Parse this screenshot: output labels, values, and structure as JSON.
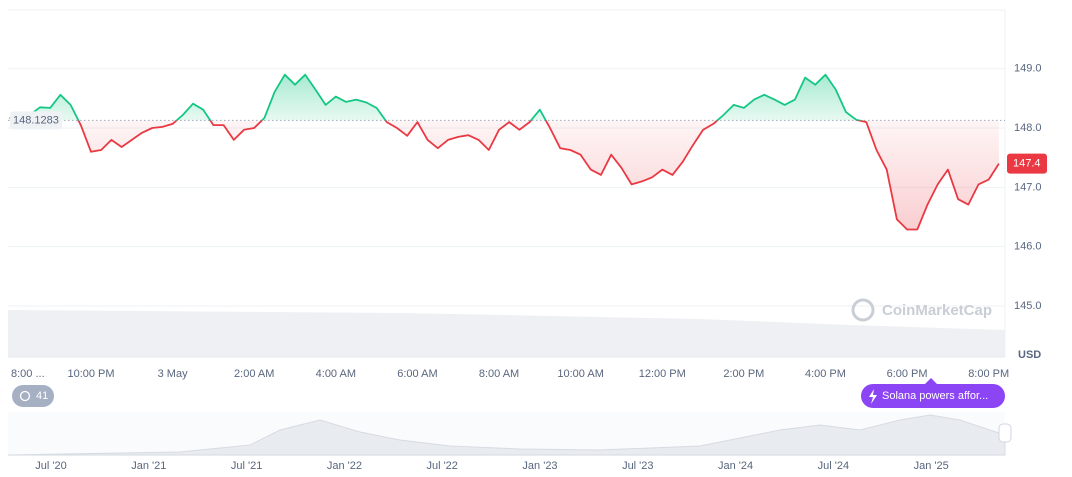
{
  "chart_data": {
    "type": "line",
    "baseline": 148.1283,
    "current_price": 147.4,
    "y_unit": "USD",
    "watermark": "CoinMarketCap",
    "badge": "41",
    "event_label": "Solana powers affor...",
    "up_color": "#16c784",
    "down_color": "#ea3943",
    "grid": true,
    "xlim": [
      0,
      24.4
    ],
    "ylim": [
      144.14,
      149.99
    ],
    "xticks": [
      {
        "value": 0,
        "label": "8:00 ..."
      },
      {
        "value": 2,
        "label": "10:00 PM"
      },
      {
        "value": 4,
        "label": "3 May"
      },
      {
        "value": 6,
        "label": "2:00 AM"
      },
      {
        "value": 8,
        "label": "4:00 AM"
      },
      {
        "value": 10,
        "label": "6:00 AM"
      },
      {
        "value": 12,
        "label": "8:00 AM"
      },
      {
        "value": 14,
        "label": "10:00 AM"
      },
      {
        "value": 16,
        "label": "12:00 PM"
      },
      {
        "value": 18,
        "label": "2:00 PM"
      },
      {
        "value": 20,
        "label": "4:00 PM"
      },
      {
        "value": 22,
        "label": "6:00 PM"
      },
      {
        "value": 24,
        "label": "8:00 PM"
      }
    ],
    "yticks": [
      {
        "value": 145,
        "label": "145.0"
      },
      {
        "value": 146,
        "label": "146.0"
      },
      {
        "value": 147,
        "label": "147.0"
      },
      {
        "value": 148,
        "label": "148.0"
      },
      {
        "value": 149,
        "label": "149.0"
      }
    ],
    "navigator_labels": [
      "Jul '20",
      "Jan '21",
      "Jul '21",
      "Jan '22",
      "Jul '22",
      "Jan '23",
      "Jul '23",
      "Jan '24",
      "Jul '24",
      "Jan '25"
    ],
    "x": [
      0,
      0.25,
      0.5,
      0.75,
      1,
      1.25,
      1.5,
      1.75,
      2,
      2.25,
      2.5,
      2.75,
      3,
      3.25,
      3.5,
      3.75,
      4,
      4.25,
      4.5,
      4.75,
      5,
      5.25,
      5.5,
      5.75,
      6,
      6.25,
      6.5,
      6.75,
      7,
      7.25,
      7.5,
      7.75,
      8,
      8.25,
      8.5,
      8.75,
      9,
      9.25,
      9.5,
      9.75,
      10,
      10.25,
      10.5,
      10.75,
      11,
      11.25,
      11.5,
      11.75,
      12,
      12.25,
      12.5,
      12.75,
      13,
      13.25,
      13.5,
      13.75,
      14,
      14.25,
      14.5,
      14.75,
      15,
      15.25,
      15.5,
      15.75,
      16,
      16.25,
      16.5,
      16.75,
      17,
      17.25,
      17.5,
      17.75,
      18,
      18.25,
      18.5,
      18.75,
      19,
      19.25,
      19.5,
      19.75,
      20,
      20.25,
      20.5,
      20.75,
      21,
      21.25,
      21.5,
      21.75,
      22,
      22.25,
      22.5,
      22.75,
      23,
      23.25,
      23.5,
      23.75,
      24,
      24.25
    ],
    "values": [
      148.17,
      148.17,
      148.22,
      148.35,
      148.34,
      148.56,
      148.39,
      148.05,
      147.6,
      147.63,
      147.8,
      147.68,
      147.8,
      147.92,
      148.0,
      148.02,
      148.07,
      148.22,
      148.41,
      148.31,
      148.05,
      148.05,
      147.8,
      147.97,
      148.0,
      148.17,
      148.61,
      148.9,
      148.73,
      148.9,
      148.65,
      148.39,
      148.53,
      148.44,
      148.48,
      148.43,
      148.34,
      148.1,
      148.0,
      147.87,
      148.1,
      147.8,
      147.66,
      147.8,
      147.85,
      147.88,
      147.8,
      147.63,
      147.97,
      148.1,
      147.97,
      148.1,
      148.31,
      148.0,
      147.66,
      147.63,
      147.55,
      147.3,
      147.21,
      147.55,
      147.33,
      147.05,
      147.1,
      147.17,
      147.3,
      147.21,
      147.43,
      147.71,
      147.97,
      148.07,
      148.22,
      148.39,
      148.34,
      148.48,
      148.56,
      148.48,
      148.39,
      148.48,
      148.85,
      148.73,
      148.9,
      148.65,
      148.27,
      148.14,
      148.1,
      147.63,
      147.3,
      146.46,
      146.29,
      146.29,
      146.71,
      147.05,
      147.3,
      146.8,
      146.71,
      147.05,
      147.13,
      147.4
    ]
  }
}
